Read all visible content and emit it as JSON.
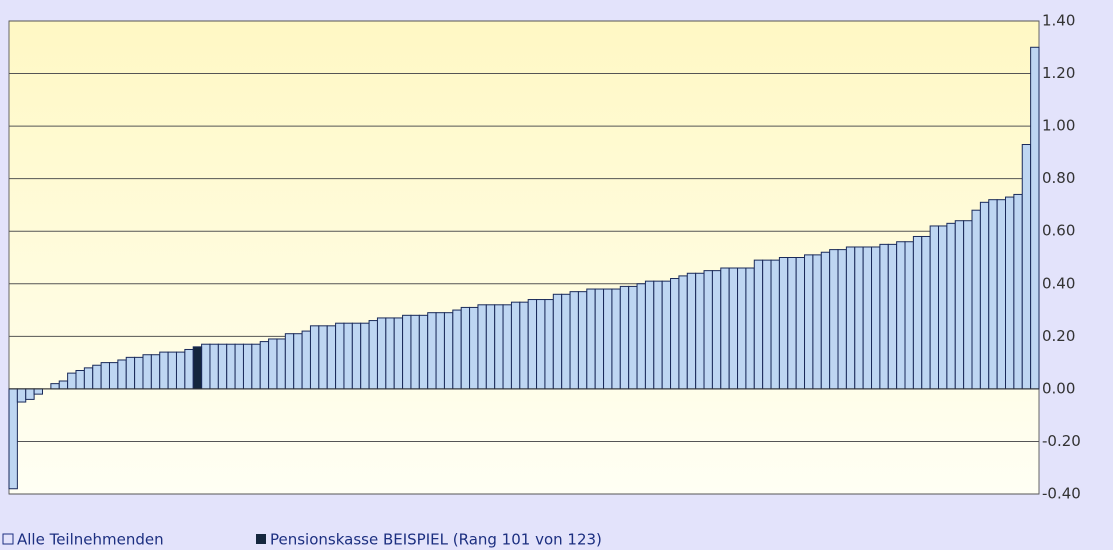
{
  "chart_data": {
    "type": "bar",
    "series": [
      {
        "name": "Alle Teilnehmenden",
        "color": "#bed6f2",
        "values": [
          -0.38,
          -0.05,
          -0.04,
          -0.02,
          0.0,
          0.02,
          0.03,
          0.06,
          0.07,
          0.08,
          0.09,
          0.1,
          0.1,
          0.11,
          0.12,
          0.12,
          0.13,
          0.13,
          0.14,
          0.14,
          0.14,
          0.15,
          null,
          0.17,
          0.17,
          0.17,
          0.17,
          0.17,
          0.17,
          0.17,
          0.18,
          0.19,
          0.19,
          0.21,
          0.21,
          0.22,
          0.24,
          0.24,
          0.24,
          0.25,
          0.25,
          0.25,
          0.25,
          0.26,
          0.27,
          0.27,
          0.27,
          0.28,
          0.28,
          0.28,
          0.29,
          0.29,
          0.29,
          0.3,
          0.31,
          0.31,
          0.32,
          0.32,
          0.32,
          0.32,
          0.33,
          0.33,
          0.34,
          0.34,
          0.34,
          0.36,
          0.36,
          0.37,
          0.37,
          0.38,
          0.38,
          0.38,
          0.38,
          0.39,
          0.39,
          0.4,
          0.41,
          0.41,
          0.41,
          0.42,
          0.43,
          0.44,
          0.44,
          0.45,
          0.45,
          0.46,
          0.46,
          0.46,
          0.46,
          0.49,
          0.49,
          0.49,
          0.5,
          0.5,
          0.5,
          0.51,
          0.51,
          0.52,
          0.53,
          0.53,
          0.54,
          0.54,
          0.54,
          0.54,
          0.55,
          0.55,
          0.56,
          0.56,
          0.58,
          0.58,
          0.62,
          0.62,
          0.63,
          0.64,
          0.64,
          0.68,
          0.71,
          0.72,
          0.72,
          0.73,
          0.74,
          0.93,
          1.3
        ]
      },
      {
        "name": "Pensionskasse BEISPIEL (Rang 101  von  123)",
        "color": "#14263e",
        "values": [
          null,
          null,
          null,
          null,
          null,
          null,
          null,
          null,
          null,
          null,
          null,
          null,
          null,
          null,
          null,
          null,
          null,
          null,
          null,
          null,
          null,
          null,
          0.16,
          null,
          null,
          null,
          null,
          null,
          null,
          null,
          null,
          null,
          null,
          null,
          null,
          null,
          null,
          null,
          null,
          null,
          null,
          null,
          null,
          null,
          null,
          null,
          null,
          null,
          null,
          null,
          null,
          null,
          null,
          null,
          null,
          null,
          null,
          null,
          null,
          null,
          null,
          null,
          null,
          null,
          null,
          null,
          null,
          null,
          null,
          null,
          null,
          null,
          null,
          null,
          null,
          null,
          null,
          null,
          null,
          null,
          null,
          null,
          null,
          null,
          null,
          null,
          null,
          null,
          null,
          null,
          null,
          null,
          null,
          null,
          null,
          null,
          null,
          null,
          null,
          null,
          null,
          null,
          null,
          null,
          null,
          null,
          null,
          null,
          null,
          null,
          null,
          null,
          null,
          null,
          null,
          null,
          null,
          null,
          null,
          null,
          null,
          null,
          null
        ]
      }
    ],
    "ylim": [
      -0.4,
      1.4
    ],
    "yticks": [
      {
        "value": -0.4,
        "label": "-0.40"
      },
      {
        "value": -0.2,
        "label": "-0.20"
      },
      {
        "value": 0,
        "label": "0.00"
      },
      {
        "value": 0.2,
        "label": "0.20"
      },
      {
        "value": 0.4,
        "label": "0.40"
      },
      {
        "value": 0.6,
        "label": "0.60"
      },
      {
        "value": 0.8,
        "label": "0.80"
      },
      {
        "value": 1.0,
        "label": "1.00"
      },
      {
        "value": 1.2,
        "label": "1.20"
      },
      {
        "value": 1.4,
        "label": "1.40"
      }
    ],
    "grid": true
  }
}
